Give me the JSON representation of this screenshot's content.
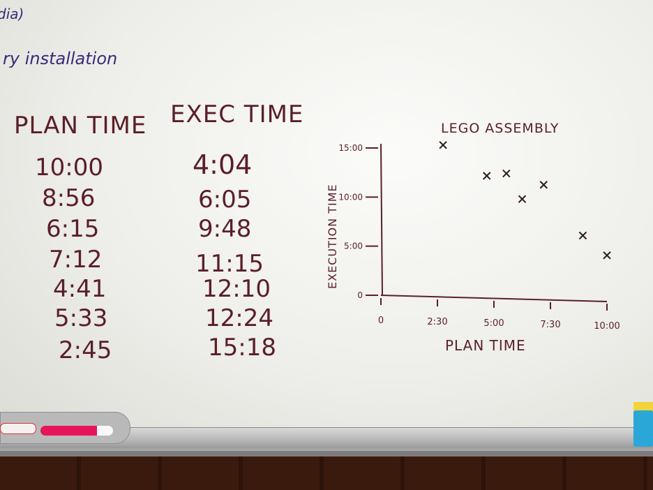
{
  "board": {
    "corner_fragment": "dia)",
    "partial_note": "ry installation"
  },
  "table": {
    "headers": [
      "PLAN TIME",
      "EXEC TIME"
    ],
    "rows": [
      {
        "plan": "10:00",
        "exec": "4:04"
      },
      {
        "plan": "8:56",
        "exec": "6:05"
      },
      {
        "plan": "6:15",
        "exec": "9:48"
      },
      {
        "plan": "7:12",
        "exec": "11:15"
      },
      {
        "plan": "4:41",
        "exec": "12:10"
      },
      {
        "plan": "5:33",
        "exec": "12:24"
      },
      {
        "plan": "2:45",
        "exec": "15:18"
      }
    ]
  },
  "chart_data": {
    "type": "scatter",
    "title": "LEGO ASSEMBLY",
    "xlabel": "PLAN TIME",
    "ylabel": "EXECUTION TIME",
    "xlim": [
      0,
      600
    ],
    "ylim": [
      0,
      900
    ],
    "x_ticks": [
      {
        "v": 0,
        "label": "0"
      },
      {
        "v": 150,
        "label": "2:30"
      },
      {
        "v": 300,
        "label": "5:00"
      },
      {
        "v": 450,
        "label": "7:30"
      },
      {
        "v": 600,
        "label": "10:00"
      }
    ],
    "y_ticks": [
      {
        "v": 0,
        "label": "0"
      },
      {
        "v": 300,
        "label": "5:00"
      },
      {
        "v": 600,
        "label": "10:00"
      },
      {
        "v": 900,
        "label": "15:00"
      }
    ],
    "marker": "x",
    "points": [
      {
        "x": 600,
        "y": 244
      },
      {
        "x": 536,
        "y": 365
      },
      {
        "x": 375,
        "y": 588
      },
      {
        "x": 432,
        "y": 675
      },
      {
        "x": 281,
        "y": 730
      },
      {
        "x": 333,
        "y": 744
      },
      {
        "x": 165,
        "y": 918
      }
    ]
  }
}
